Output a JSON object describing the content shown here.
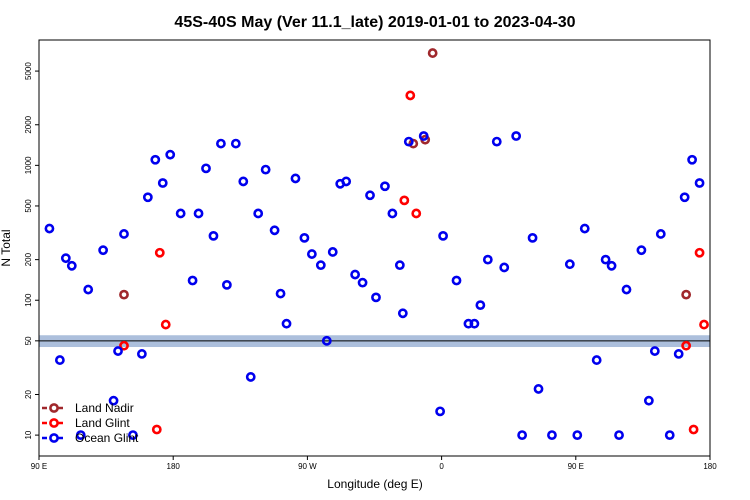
{
  "chart_data": {
    "type": "scatter",
    "title": "45S-40S May (Ver 11.1_late)   2019-01-01 to 2023-04-30",
    "xlabel": "Longitude (deg E)",
    "ylabel": "N Total",
    "x_ticks": [
      {
        "value": 90,
        "label": "90 E"
      },
      {
        "value": 180,
        "label": "180"
      },
      {
        "value": 270,
        "label": "90 W"
      },
      {
        "value": 360,
        "label": "0"
      },
      {
        "value": 450,
        "label": "90 E"
      },
      {
        "value": 540,
        "label": "180"
      }
    ],
    "xlim": [
      90,
      540
    ],
    "y_scale": "log",
    "ylim": [
      7,
      8500
    ],
    "y_ticks": [
      10,
      20,
      50,
      100,
      200,
      500,
      1000,
      2000,
      5000
    ],
    "reference_line": {
      "value": 50,
      "band": [
        45,
        55
      ],
      "color": "#000000",
      "band_color": "#9db4d6"
    },
    "legend": {
      "position": "bottom-left"
    },
    "series": [
      {
        "name": "Land Nadir",
        "color": "#a0282c",
        "points": [
          {
            "x": 147,
            "y": 110
          },
          {
            "x": 354,
            "y": 6800
          },
          {
            "x": 341,
            "y": 1450
          },
          {
            "x": 349,
            "y": 1550
          },
          {
            "x": 524,
            "y": 110
          }
        ]
      },
      {
        "name": "Land Glint",
        "color": "#ff0000",
        "points": [
          {
            "x": 147,
            "y": 46
          },
          {
            "x": 171,
            "y": 225
          },
          {
            "x": 175,
            "y": 66
          },
          {
            "x": 169,
            "y": 11
          },
          {
            "x": 335,
            "y": 550
          },
          {
            "x": 339,
            "y": 3300
          },
          {
            "x": 343,
            "y": 440
          },
          {
            "x": 524,
            "y": 46
          },
          {
            "x": 529,
            "y": 11
          },
          {
            "x": 533,
            "y": 225
          },
          {
            "x": 536,
            "y": 66
          }
        ]
      },
      {
        "name": "Ocean Glint",
        "color": "#0000ee",
        "points": [
          {
            "x": 97,
            "y": 340
          },
          {
            "x": 104,
            "y": 36
          },
          {
            "x": 108,
            "y": 205
          },
          {
            "x": 112,
            "y": 180
          },
          {
            "x": 118,
            "y": 10
          },
          {
            "x": 123,
            "y": 120
          },
          {
            "x": 133,
            "y": 235
          },
          {
            "x": 140,
            "y": 18
          },
          {
            "x": 143,
            "y": 42
          },
          {
            "x": 147,
            "y": 310
          },
          {
            "x": 153,
            "y": 10
          },
          {
            "x": 159,
            "y": 40
          },
          {
            "x": 163,
            "y": 580
          },
          {
            "x": 168,
            "y": 1100
          },
          {
            "x": 173,
            "y": 740
          },
          {
            "x": 178,
            "y": 1200
          },
          {
            "x": 185,
            "y": 440
          },
          {
            "x": 193,
            "y": 140
          },
          {
            "x": 197,
            "y": 440
          },
          {
            "x": 202,
            "y": 950
          },
          {
            "x": 207,
            "y": 300
          },
          {
            "x": 212,
            "y": 1450
          },
          {
            "x": 216,
            "y": 130
          },
          {
            "x": 222,
            "y": 1450
          },
          {
            "x": 227,
            "y": 760
          },
          {
            "x": 232,
            "y": 27
          },
          {
            "x": 237,
            "y": 440
          },
          {
            "x": 242,
            "y": 930
          },
          {
            "x": 248,
            "y": 330
          },
          {
            "x": 252,
            "y": 112
          },
          {
            "x": 256,
            "y": 67
          },
          {
            "x": 262,
            "y": 800
          },
          {
            "x": 268,
            "y": 290
          },
          {
            "x": 273,
            "y": 220
          },
          {
            "x": 279,
            "y": 182
          },
          {
            "x": 283,
            "y": 50
          },
          {
            "x": 287,
            "y": 228
          },
          {
            "x": 292,
            "y": 730
          },
          {
            "x": 296,
            "y": 760
          },
          {
            "x": 302,
            "y": 155
          },
          {
            "x": 307,
            "y": 135
          },
          {
            "x": 312,
            "y": 600
          },
          {
            "x": 316,
            "y": 105
          },
          {
            "x": 322,
            "y": 700
          },
          {
            "x": 327,
            "y": 440
          },
          {
            "x": 332,
            "y": 182
          },
          {
            "x": 334,
            "y": 80
          },
          {
            "x": 338,
            "y": 1500
          },
          {
            "x": 348,
            "y": 1650
          },
          {
            "x": 359,
            "y": 15
          },
          {
            "x": 361,
            "y": 300
          },
          {
            "x": 370,
            "y": 140
          },
          {
            "x": 378,
            "y": 67
          },
          {
            "x": 382,
            "y": 67
          },
          {
            "x": 386,
            "y": 92
          },
          {
            "x": 391,
            "y": 200
          },
          {
            "x": 397,
            "y": 1500
          },
          {
            "x": 402,
            "y": 175
          },
          {
            "x": 410,
            "y": 1650
          },
          {
            "x": 414,
            "y": 10
          },
          {
            "x": 421,
            "y": 290
          },
          {
            "x": 425,
            "y": 22
          },
          {
            "x": 434,
            "y": 10
          },
          {
            "x": 446,
            "y": 185
          },
          {
            "x": 451,
            "y": 10
          },
          {
            "x": 456,
            "y": 340
          },
          {
            "x": 464,
            "y": 36
          },
          {
            "x": 470,
            "y": 200
          },
          {
            "x": 474,
            "y": 180
          },
          {
            "x": 479,
            "y": 10
          },
          {
            "x": 484,
            "y": 120
          },
          {
            "x": 494,
            "y": 235
          },
          {
            "x": 499,
            "y": 18
          },
          {
            "x": 503,
            "y": 42
          },
          {
            "x": 507,
            "y": 310
          },
          {
            "x": 513,
            "y": 10
          },
          {
            "x": 519,
            "y": 40
          },
          {
            "x": 523,
            "y": 580
          },
          {
            "x": 528,
            "y": 1100
          },
          {
            "x": 533,
            "y": 740
          }
        ]
      }
    ]
  }
}
